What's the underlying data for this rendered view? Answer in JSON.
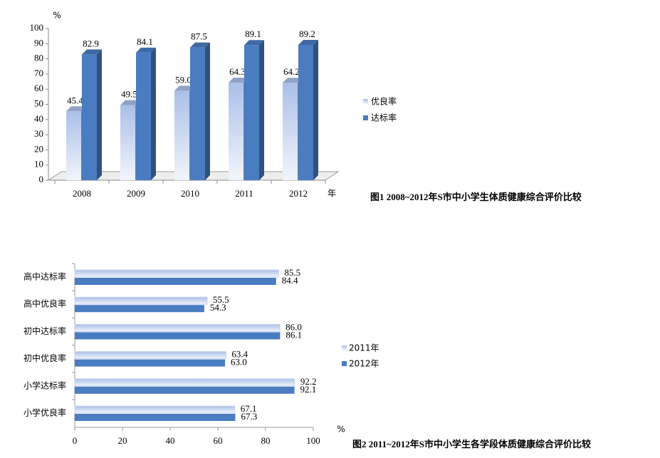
{
  "chart_data": [
    {
      "type": "bar",
      "title": "图1  2008~2012年S市中小学生体质健康综合评价比较",
      "y_label": "%",
      "x_label": "年",
      "categories": [
        "2008",
        "2009",
        "2010",
        "2011",
        "2012"
      ],
      "series": [
        {
          "name": "优良率",
          "color": "#aabfe8",
          "values": [
            45.4,
            49.5,
            59.0,
            64.3,
            64.2
          ],
          "value_labels": [
            "45.4",
            "49.5",
            "59.0",
            "64.3",
            "64.2"
          ]
        },
        {
          "name": "达标率",
          "color": "#4a7cc1",
          "values": [
            82.9,
            84.1,
            87.5,
            89.1,
            89.2
          ],
          "value_labels": [
            "82.9",
            "84.1",
            "87.5",
            "89.1",
            "89.2"
          ]
        }
      ],
      "ylim": [
        0,
        100
      ],
      "yticks": [
        0,
        10,
        20,
        30,
        40,
        50,
        60,
        70,
        80,
        90,
        100
      ],
      "legend": "right"
    },
    {
      "type": "hbar",
      "title": "图2  2011~2012年S市中小学生各学段体质健康综合评价比较",
      "x_label": "%",
      "categories": [
        "高中达标率",
        "高中优良率",
        "初中达标率",
        "初中优良率",
        "小学达标率",
        "小学优良率"
      ],
      "series": [
        {
          "name": "2011年",
          "color": "#aabfe8",
          "values": [
            85.5,
            55.5,
            86.0,
            63.4,
            92.2,
            67.1
          ],
          "value_labels": [
            "85.5",
            "55.5",
            "86.0",
            "63.4",
            "92.2",
            "67.1"
          ]
        },
        {
          "name": "2012年",
          "color": "#4a7cc1",
          "values": [
            84.4,
            54.3,
            86.1,
            63.0,
            92.1,
            67.3
          ],
          "value_labels": [
            "84.4",
            "54.3",
            "86.1",
            "63.0",
            "92.1",
            "67.3"
          ]
        }
      ],
      "xlim": [
        0,
        100
      ],
      "xticks": [
        0,
        20,
        40,
        60,
        80,
        100
      ],
      "legend": "right"
    }
  ]
}
